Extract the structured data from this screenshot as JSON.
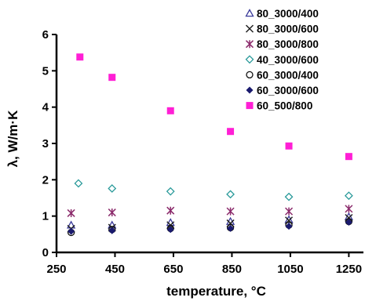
{
  "chart_data": {
    "type": "scatter",
    "title": "",
    "xlabel": "temperature, °C",
    "ylabel": "λ, W/m·K",
    "xlim": [
      250,
      1300
    ],
    "ylim": [
      0,
      6
    ],
    "xticks": [
      250,
      450,
      650,
      850,
      1050,
      1250
    ],
    "yticks": [
      0,
      1,
      2,
      3,
      4,
      5,
      6
    ],
    "grid": false,
    "legend_position": "top-right",
    "series": [
      {
        "name": "80_3000/400",
        "marker": "triangle-open",
        "color": "#3a3a9a",
        "x": [
          300,
          440,
          640,
          845,
          1045,
          1250
        ],
        "y": [
          0.75,
          0.75,
          0.82,
          0.85,
          0.9,
          0.98
        ]
      },
      {
        "name": "80_3000/600",
        "marker": "x",
        "color": "#222222",
        "x": [
          300,
          440,
          640,
          845,
          1045,
          1250
        ],
        "y": [
          0.65,
          0.68,
          0.75,
          0.8,
          0.88,
          0.95
        ]
      },
      {
        "name": "80_3000/800",
        "marker": "asterisk",
        "color": "#8b2a6b",
        "x": [
          300,
          440,
          640,
          845,
          1045,
          1250
        ],
        "y": [
          1.08,
          1.1,
          1.15,
          1.13,
          1.13,
          1.2
        ]
      },
      {
        "name": "40_3000/600",
        "marker": "diamond-open",
        "color": "#2a9a9a",
        "x": [
          325,
          440,
          640,
          845,
          1045,
          1250
        ],
        "y": [
          1.9,
          1.76,
          1.68,
          1.6,
          1.53,
          1.56
        ]
      },
      {
        "name": "60_3000/400",
        "marker": "circle-open",
        "color": "#111111",
        "x": [
          300,
          440,
          640,
          845,
          1045,
          1250
        ],
        "y": [
          0.55,
          0.63,
          0.66,
          0.68,
          0.75,
          0.85
        ]
      },
      {
        "name": "60_3000/600",
        "marker": "diamond-filled",
        "color": "#1a1a6e",
        "x": [
          300,
          440,
          640,
          845,
          1045,
          1250
        ],
        "y": [
          0.58,
          0.6,
          0.63,
          0.66,
          0.72,
          0.83
        ]
      },
      {
        "name": "60_500/800",
        "marker": "square-filled",
        "color": "#ff1fd5",
        "x": [
          330,
          440,
          640,
          845,
          1045,
          1250
        ],
        "y": [
          5.38,
          4.82,
          3.9,
          3.33,
          2.93,
          2.64
        ]
      }
    ]
  }
}
